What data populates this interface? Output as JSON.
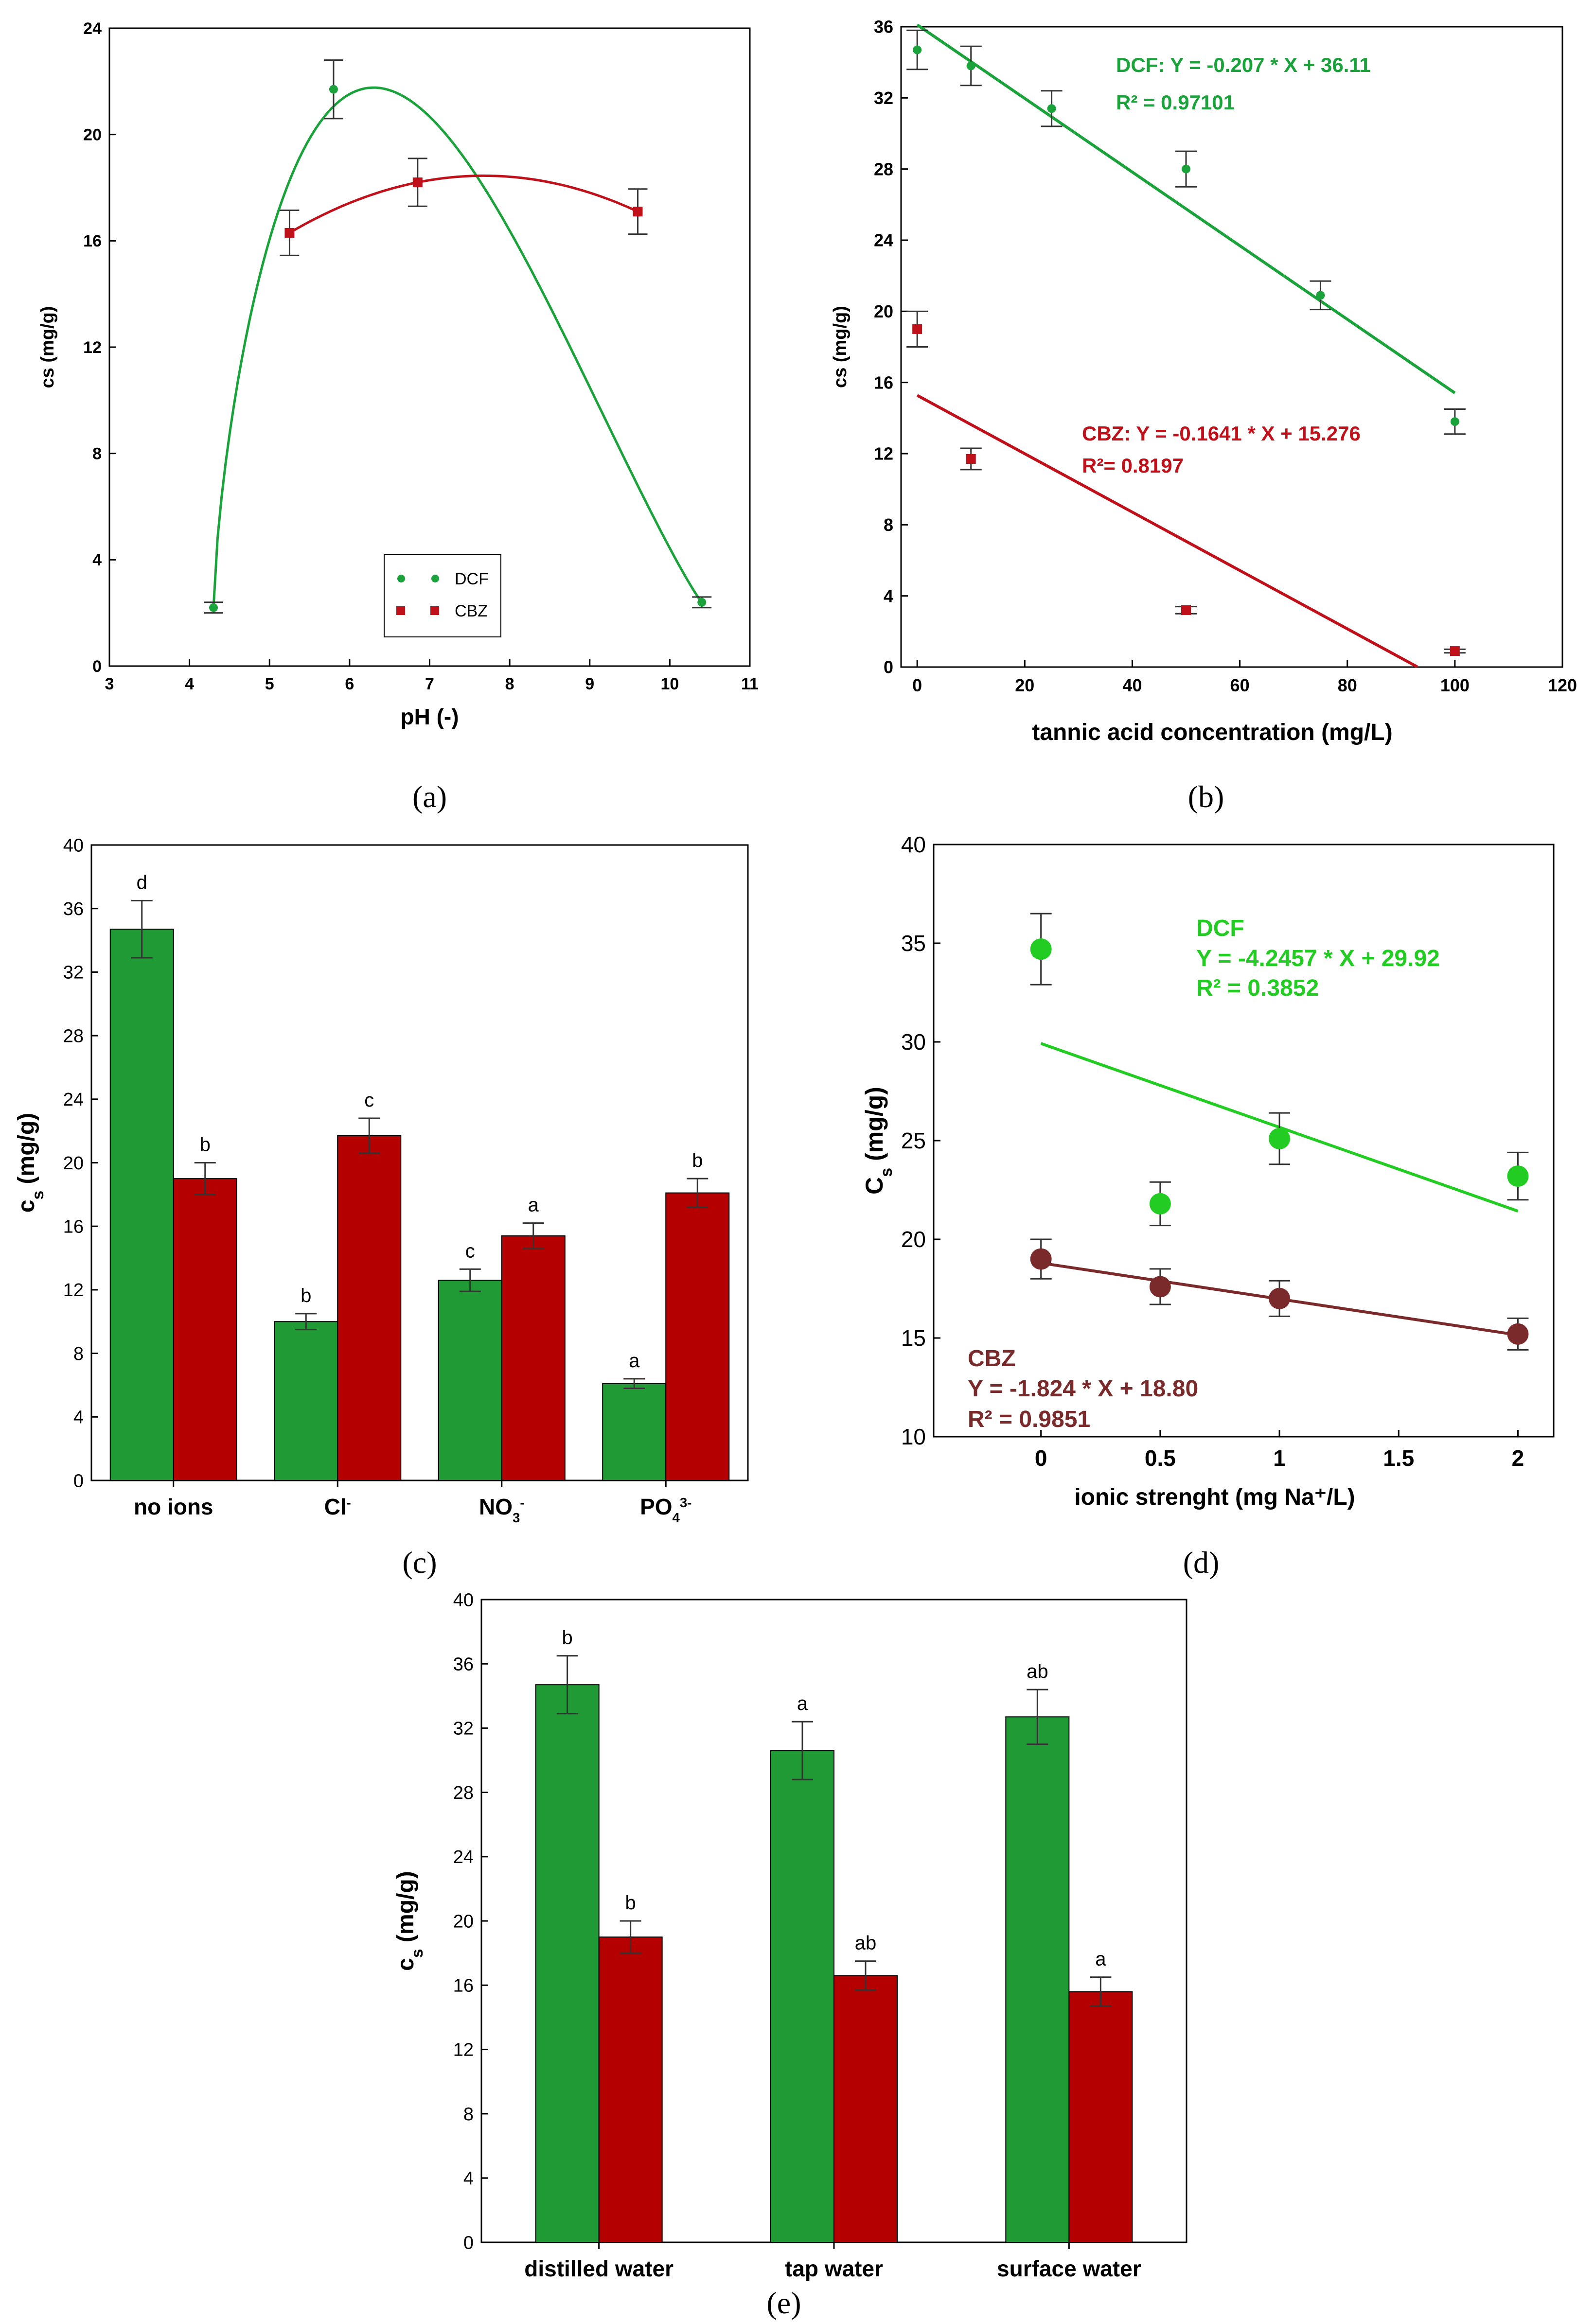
{
  "colors": {
    "dcf": "#1aa33a",
    "cbz": "#c0101a",
    "bar_dcf": "#1f9a34",
    "bar_cbz": "#b50000",
    "dcf_d": "#22cc22",
    "cbz_d": "#7a2a2a"
  },
  "chart_data": [
    {
      "id": "a",
      "type": "scatter",
      "panel_label": "(a)",
      "xlabel": "pH (-)",
      "ylabel": "cs (mg/g)",
      "xlim": [
        3,
        11
      ],
      "ylim": [
        0,
        24
      ],
      "xticks": [
        "3",
        "4",
        "5",
        "6",
        "7",
        "8",
        "9",
        "10",
        "11"
      ],
      "yticks": [
        "0",
        "4",
        "8",
        "12",
        "16",
        "20",
        "24"
      ],
      "legend": [
        "DCF",
        "CBZ"
      ],
      "series": [
        {
          "name": "DCF",
          "x": [
            4.3,
            5.8,
            10.4
          ],
          "y": [
            2.2,
            21.7,
            2.4
          ],
          "err": [
            0.2,
            1.1,
            0.2
          ]
        },
        {
          "name": "CBZ",
          "x": [
            5.25,
            6.85,
            9.6
          ],
          "y": [
            16.3,
            18.2,
            17.1
          ],
          "err": [
            0.85,
            0.9,
            0.85
          ]
        }
      ]
    },
    {
      "id": "b",
      "type": "scatter",
      "panel_label": "(b)",
      "xlabel": "tannic acid concentration (mg/L)",
      "ylabel": "cs (mg/g)",
      "xlim": [
        -3,
        120
      ],
      "ylim": [
        0,
        36
      ],
      "xticks": [
        "0",
        "20",
        "40",
        "60",
        "80",
        "100",
        "120"
      ],
      "yticks": [
        "0",
        "4",
        "8",
        "12",
        "16",
        "20",
        "24",
        "28",
        "32",
        "36"
      ],
      "series": [
        {
          "name": "DCF",
          "x": [
            0,
            10,
            25,
            50,
            75,
            100
          ],
          "y": [
            34.7,
            33.8,
            31.4,
            28.0,
            20.9,
            13.8
          ],
          "err": [
            1.1,
            1.1,
            1.0,
            1.0,
            0.8,
            0.7
          ]
        },
        {
          "name": "CBZ",
          "x": [
            0,
            10,
            50,
            100
          ],
          "y": [
            19.0,
            11.7,
            3.2,
            0.9
          ],
          "err": [
            1.0,
            0.6,
            0.2,
            0.1
          ]
        }
      ],
      "fits": [
        {
          "name": "DCF",
          "line1": "DCF:  Y = -0.207 * X + 36.11",
          "line2": "R² = 0.97101",
          "slope": -0.207,
          "intercept": 36.11,
          "x0": 0,
          "x1": 100
        },
        {
          "name": "CBZ",
          "line1": "CBZ: Y = -0.1641 * X + 15.276",
          "line2": "R²= 0.8197",
          "slope": -0.1641,
          "intercept": 15.276,
          "x0": 0,
          "x1": 93
        }
      ]
    },
    {
      "id": "c",
      "type": "bar",
      "panel_label": "(c)",
      "categories": [
        "no ions",
        "Cl",
        "NO",
        "PO"
      ],
      "category_sup": [
        "",
        "-",
        "-",
        "3-"
      ],
      "category_sub": [
        "",
        "",
        "3",
        "4"
      ],
      "ylabel": "cs (mg/g)",
      "ylim": [
        0,
        40
      ],
      "yticks": [
        "0",
        "4",
        "8",
        "12",
        "16",
        "20",
        "24",
        "28",
        "32",
        "36",
        "40"
      ],
      "series": [
        {
          "name": "DCF",
          "values": [
            34.7,
            10.0,
            12.6,
            6.1
          ],
          "err": [
            1.8,
            0.5,
            0.7,
            0.3
          ],
          "letters": [
            "d",
            "b",
            "c",
            "a"
          ]
        },
        {
          "name": "CBZ",
          "values": [
            19.0,
            21.7,
            15.4,
            18.1
          ],
          "err": [
            1.0,
            1.1,
            0.8,
            0.9
          ],
          "letters": [
            "b",
            "c",
            "a",
            "b"
          ]
        }
      ]
    },
    {
      "id": "d",
      "type": "scatter",
      "panel_label": "(d)",
      "xlabel": "ionic strenght (mg Na⁺/L)",
      "ylabel": "Cs (mg/g)",
      "xlim": [
        -0.45,
        2.15
      ],
      "ylim": [
        10,
        40
      ],
      "xticks": [
        "0",
        "0.5",
        "1",
        "1.5",
        "2"
      ],
      "yticks": [
        "10",
        "15",
        "20",
        "25",
        "30",
        "35",
        "40"
      ],
      "series": [
        {
          "name": "DCF",
          "x": [
            0,
            0.5,
            1,
            2
          ],
          "y": [
            34.7,
            21.8,
            25.1,
            23.2
          ],
          "err": [
            1.8,
            1.1,
            1.3,
            1.2
          ]
        },
        {
          "name": "CBZ",
          "x": [
            0,
            0.5,
            1,
            2
          ],
          "y": [
            19.0,
            17.6,
            17.0,
            15.2
          ],
          "err": [
            1.0,
            0.9,
            0.9,
            0.8
          ]
        }
      ],
      "fits": [
        {
          "name": "DCF",
          "line1": "DCF",
          "line2": "Y = -4.2457 * X + 29.92",
          "line3": "R² = 0.3852",
          "slope": -4.2457,
          "intercept": 29.92,
          "x0": 0,
          "x1": 2
        },
        {
          "name": "CBZ",
          "line1": "CBZ",
          "line2": "Y = -1.824 * X + 18.80",
          "line3": "R² = 0.9851",
          "slope": -1.824,
          "intercept": 18.8,
          "x0": 0,
          "x1": 2
        }
      ]
    },
    {
      "id": "e",
      "type": "bar",
      "panel_label": "(e)",
      "categories": [
        "distilled water",
        "tap water",
        "surface water"
      ],
      "ylabel": "cs (mg/g)",
      "ylim": [
        0,
        40
      ],
      "yticks": [
        "0",
        "4",
        "8",
        "12",
        "16",
        "20",
        "24",
        "28",
        "32",
        "36",
        "40"
      ],
      "series": [
        {
          "name": "DCF",
          "values": [
            34.7,
            30.6,
            32.7
          ],
          "err": [
            1.8,
            1.8,
            1.7
          ],
          "letters": [
            "b",
            "a",
            "ab"
          ]
        },
        {
          "name": "CBZ",
          "values": [
            19.0,
            16.6,
            15.6
          ],
          "err": [
            1.0,
            0.9,
            0.9
          ],
          "letters": [
            "b",
            "ab",
            "a"
          ]
        }
      ]
    }
  ]
}
